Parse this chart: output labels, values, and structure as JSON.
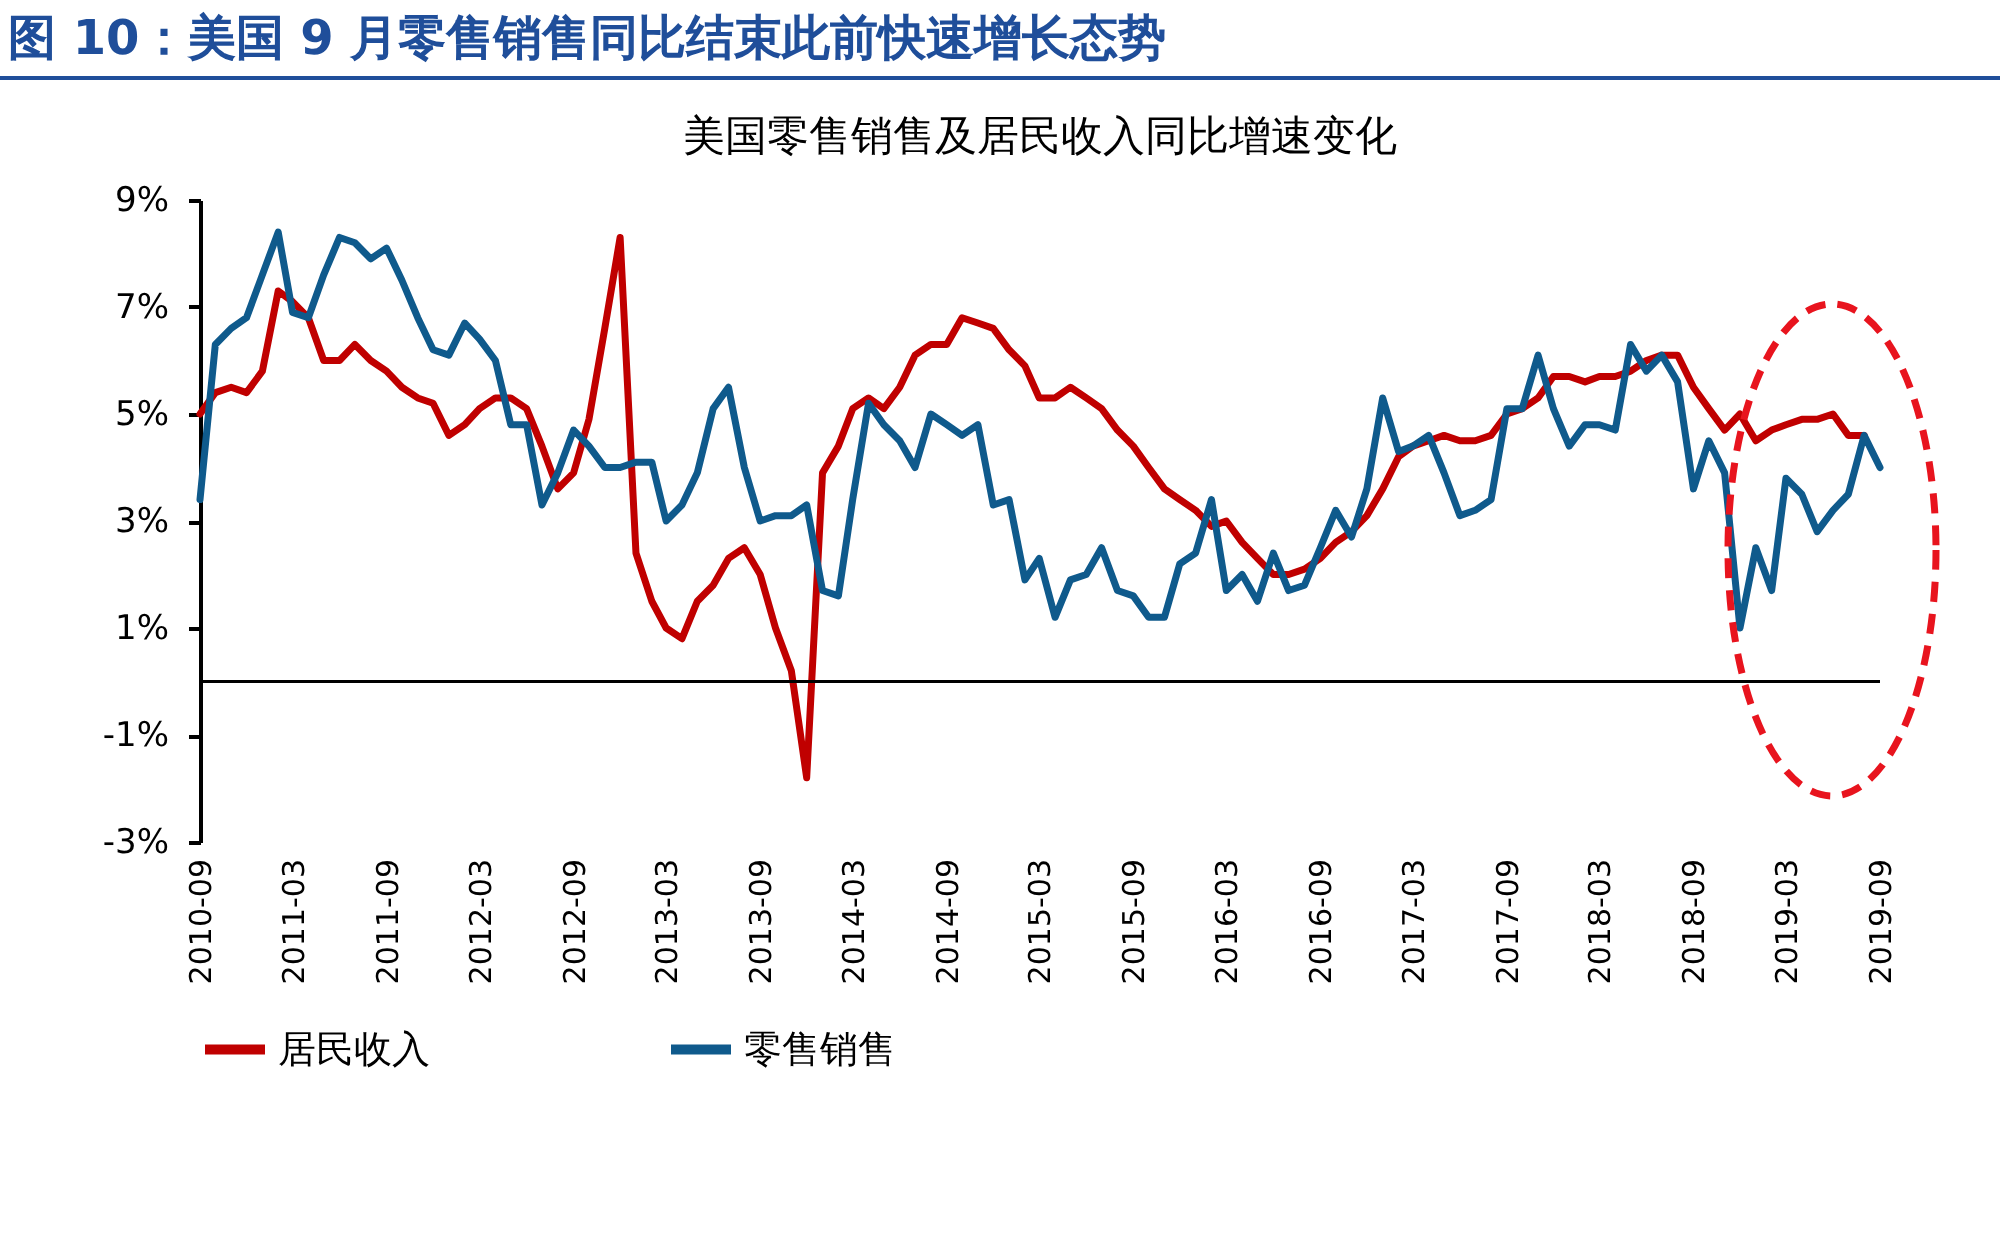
{
  "chart_data": {
    "type": "line",
    "title": "图 10：美国 9 月零售销售同比结束此前快速增长态势",
    "subtitle": "美国零售销售及居民收入同比增速变化",
    "x": [
      "2010-09",
      "2010-10",
      "2010-11",
      "2010-12",
      "2011-01",
      "2011-02",
      "2011-03",
      "2011-04",
      "2011-05",
      "2011-06",
      "2011-07",
      "2011-08",
      "2011-09",
      "2011-10",
      "2011-11",
      "2011-12",
      "2012-01",
      "2012-02",
      "2012-03",
      "2012-04",
      "2012-05",
      "2012-06",
      "2012-07",
      "2012-08",
      "2012-09",
      "2012-10",
      "2012-11",
      "2012-12",
      "2013-01",
      "2013-02",
      "2013-03",
      "2013-04",
      "2013-05",
      "2013-06",
      "2013-07",
      "2013-08",
      "2013-09",
      "2013-10",
      "2013-11",
      "2013-12",
      "2014-01",
      "2014-02",
      "2014-03",
      "2014-04",
      "2014-05",
      "2014-06",
      "2014-07",
      "2014-08",
      "2014-09",
      "2014-10",
      "2014-11",
      "2014-12",
      "2015-01",
      "2015-02",
      "2015-03",
      "2015-04",
      "2015-05",
      "2015-06",
      "2015-07",
      "2015-08",
      "2015-09",
      "2015-10",
      "2015-11",
      "2015-12",
      "2016-01",
      "2016-02",
      "2016-03",
      "2016-04",
      "2016-05",
      "2016-06",
      "2016-07",
      "2016-08",
      "2016-09",
      "2016-10",
      "2016-11",
      "2016-12",
      "2017-01",
      "2017-02",
      "2017-03",
      "2017-04",
      "2017-05",
      "2017-06",
      "2017-07",
      "2017-08",
      "2017-09",
      "2017-10",
      "2017-11",
      "2017-12",
      "2018-01",
      "2018-02",
      "2018-03",
      "2018-04",
      "2018-05",
      "2018-06",
      "2018-07",
      "2018-08",
      "2018-09",
      "2018-10",
      "2018-11",
      "2018-12",
      "2019-01",
      "2019-02",
      "2019-03",
      "2019-04",
      "2019-05",
      "2019-06",
      "2019-07",
      "2019-08",
      "2019-09"
    ],
    "series": [
      {
        "name": "居民收入",
        "color": "#c00000",
        "values": [
          5.0,
          5.4,
          5.5,
          5.4,
          5.8,
          7.3,
          7.1,
          6.8,
          6.0,
          6.0,
          6.3,
          6.0,
          5.8,
          5.5,
          5.3,
          5.2,
          4.6,
          4.8,
          5.1,
          5.3,
          5.3,
          5.1,
          4.4,
          3.6,
          3.9,
          4.9,
          6.6,
          8.3,
          2.4,
          1.5,
          1.0,
          0.8,
          1.5,
          1.8,
          2.3,
          2.5,
          2.0,
          1.0,
          0.2,
          -1.8,
          3.9,
          4.4,
          5.1,
          5.3,
          5.1,
          5.5,
          6.1,
          6.3,
          6.3,
          6.8,
          6.7,
          6.6,
          6.2,
          5.9,
          5.3,
          5.3,
          5.5,
          5.3,
          5.1,
          4.7,
          4.4,
          4.0,
          3.6,
          3.4,
          3.2,
          2.9,
          3.0,
          2.6,
          2.3,
          2.0,
          2.0,
          2.1,
          2.3,
          2.6,
          2.8,
          3.1,
          3.6,
          4.2,
          4.4,
          4.5,
          4.6,
          4.5,
          4.5,
          4.6,
          5.0,
          5.1,
          5.3,
          5.7,
          5.7,
          5.6,
          5.7,
          5.7,
          5.8,
          6.0,
          6.1,
          6.1,
          5.5,
          5.1,
          4.7,
          5.0,
          4.5,
          4.7,
          4.8,
          4.9,
          4.9,
          5.0,
          4.6,
          4.6,
          null
        ]
      },
      {
        "name": "零售销售",
        "color": "#0f5a8c",
        "values": [
          3.4,
          6.3,
          6.6,
          6.8,
          7.6,
          8.4,
          6.9,
          6.8,
          7.6,
          8.3,
          8.2,
          7.9,
          8.1,
          7.5,
          6.8,
          6.2,
          6.1,
          6.7,
          6.4,
          6.0,
          4.8,
          4.8,
          3.3,
          3.9,
          4.7,
          4.4,
          4.0,
          4.0,
          4.1,
          4.1,
          3.0,
          3.3,
          3.9,
          5.1,
          5.5,
          4.0,
          3.0,
          3.1,
          3.1,
          3.3,
          1.7,
          1.6,
          3.4,
          5.2,
          4.8,
          4.5,
          4.0,
          5.0,
          4.8,
          4.6,
          4.8,
          3.3,
          3.4,
          1.9,
          2.3,
          1.2,
          1.9,
          2.0,
          2.5,
          1.7,
          1.6,
          1.2,
          1.2,
          2.2,
          2.4,
          3.4,
          1.7,
          2.0,
          1.5,
          2.4,
          1.7,
          1.8,
          2.5,
          3.2,
          2.7,
          3.6,
          5.3,
          4.3,
          4.4,
          4.6,
          3.9,
          3.1,
          3.2,
          3.4,
          5.1,
          5.1,
          6.1,
          5.1,
          4.4,
          4.8,
          4.8,
          4.7,
          6.3,
          5.8,
          6.1,
          5.6,
          3.6,
          4.5,
          3.9,
          1.0,
          2.5,
          1.7,
          3.8,
          3.5,
          2.8,
          3.2,
          3.5,
          4.6,
          4.0
        ]
      }
    ],
    "xlim": [
      "2010-09",
      "2019-09"
    ],
    "xticks": [
      "2010-09",
      "2011-03",
      "2011-09",
      "2012-03",
      "2012-09",
      "2013-03",
      "2013-09",
      "2014-03",
      "2014-09",
      "2015-03",
      "2015-09",
      "2016-03",
      "2016-09",
      "2017-03",
      "2017-09",
      "2018-03",
      "2018-09",
      "2019-03",
      "2019-09"
    ],
    "ylim": [
      -3,
      9
    ],
    "yticks": [
      {
        "value": -3,
        "label": "-3%"
      },
      {
        "value": -1,
        "label": "-1%"
      },
      {
        "value": 1,
        "label": "1%"
      },
      {
        "value": 3,
        "label": "3%"
      },
      {
        "value": 5,
        "label": "5%"
      },
      {
        "value": 7,
        "label": "7%"
      },
      {
        "value": 9,
        "label": "9%"
      }
    ],
    "ref_lines": [
      {
        "axis": "y",
        "value": 0,
        "color": "#000000"
      }
    ],
    "legend": "bottom",
    "grid": false,
    "marker": "none",
    "line_style": "solid"
  }
}
